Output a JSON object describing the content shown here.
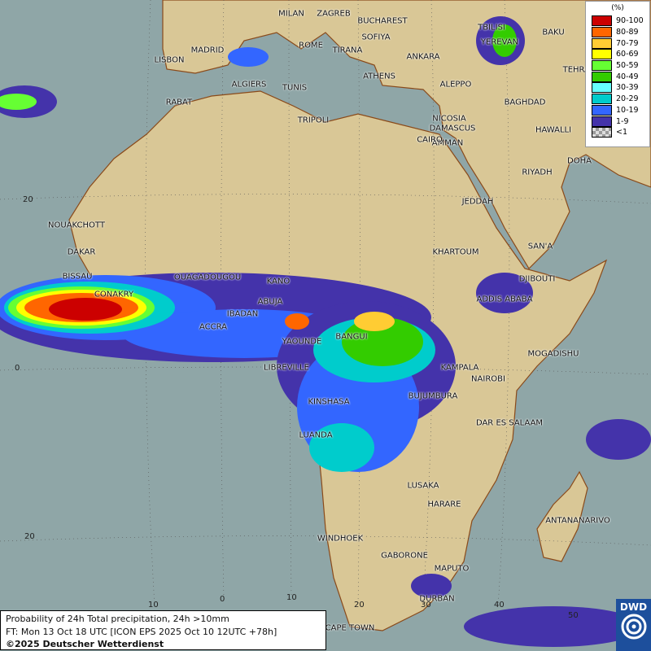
{
  "map": {
    "colors": {
      "sea": "#8fa6a7",
      "land": "#d9c796",
      "border": "#333333",
      "coast": "#8a4a1a"
    },
    "cities": [
      "MILAN",
      "ZAGREB",
      "BUCHAREST",
      "SOFIYA",
      "ROME",
      "TIRANA",
      "LISBON",
      "MADRID",
      "ANKARA",
      "TBILISI",
      "YEREVAN",
      "BAKU",
      "TEHRAN",
      "ATHENS",
      "ALGIERS",
      "TUNIS",
      "ALEPPO",
      "RABAT",
      "NICOSIA",
      "BAGHDAD",
      "DAMASCUS",
      "TRIPOLI",
      "AMMAN",
      "HAWALLI",
      "CAIRO",
      "DOHA",
      "RIYADH",
      "JEDDAH",
      "NOUAKCHOTT",
      "DAKAR",
      "KHARTOUM",
      "SAN'A",
      "BISSAU",
      "OUAGADOUGOU",
      "KANO",
      "DJIBOUTI",
      "CONAKRY",
      "ABUJA",
      "ADDIS ABABA",
      "IBADAN",
      "ACCRA",
      "BANGUI",
      "YAOUNDE",
      "MOGADISHU",
      "LIBREVILLE",
      "KAMPALA",
      "NAIROBI",
      "BUJUMBURA",
      "KINSHASA",
      "DAR ES SALAAM",
      "LUANDA",
      "LUSAKA",
      "HARARE",
      "ANTANANARIVO",
      "WINDHOEK",
      "GABORONE",
      "MAPUTO",
      "DURBAN",
      "CAPE TOWN"
    ],
    "grid_labels": [
      "20",
      "0",
      "20",
      "10",
      "0",
      "10",
      "20",
      "30",
      "40",
      "50"
    ]
  },
  "legend": {
    "unit": "(%)",
    "items": [
      {
        "label": "90-100",
        "color": "#cc0000"
      },
      {
        "label": "80-89",
        "color": "#ff6600"
      },
      {
        "label": "70-79",
        "color": "#ffcc33"
      },
      {
        "label": "60-69",
        "color": "#ffff00"
      },
      {
        "label": "50-59",
        "color": "#66ff33"
      },
      {
        "label": "40-49",
        "color": "#33cc00"
      },
      {
        "label": "30-39",
        "color": "#66ffff"
      },
      {
        "label": "20-29",
        "color": "#00cccc"
      },
      {
        "label": "10-19",
        "color": "#3366ff"
      },
      {
        "label": "1-9",
        "color": "#4433aa"
      },
      {
        "label": "<1",
        "color": "#bbbbbb"
      }
    ]
  },
  "caption": {
    "line1": "Probability of 24h Total precipitation, 24h >10mm",
    "line2": "FT: Mon 13 Oct 18 UTC [ICON EPS 2025 Oct 10 12UTC +78h]",
    "line3": "©2025 Deutscher Wetterdienst"
  },
  "logo": {
    "text": "DWD"
  }
}
